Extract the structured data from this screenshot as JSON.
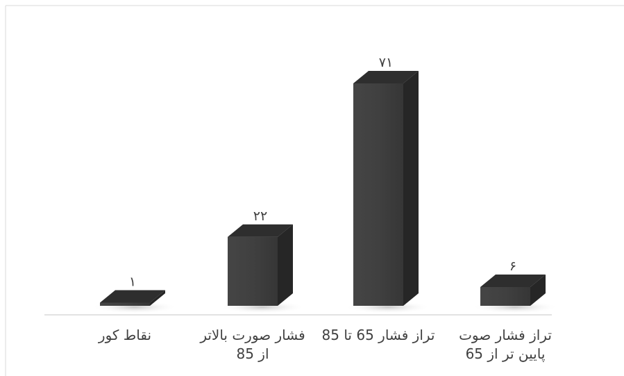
{
  "chart_data": {
    "type": "bar",
    "three_d": true,
    "categories": [
      [
        "نقاط کور"
      ],
      [
        "فشار صورت بالاتر",
        "از 85"
      ],
      [
        "تراز فشار 65 تا 85"
      ],
      [
        "تراز فشار صوت",
        "پایین تر از 65"
      ]
    ],
    "values": [
      1,
      22,
      71,
      6
    ],
    "data_labels": [
      "۱",
      "۲۲",
      "۷۱",
      "۶"
    ],
    "ylim": [
      0,
      71
    ],
    "grid": false,
    "legend": "none",
    "colors": {
      "bar_front": "#3f3f3f",
      "bar_top": "#2e2e2e",
      "bar_side": "#262626",
      "baseline": "#d9d9d9",
      "frame": "#d9d9d9",
      "text": "#404040"
    }
  }
}
